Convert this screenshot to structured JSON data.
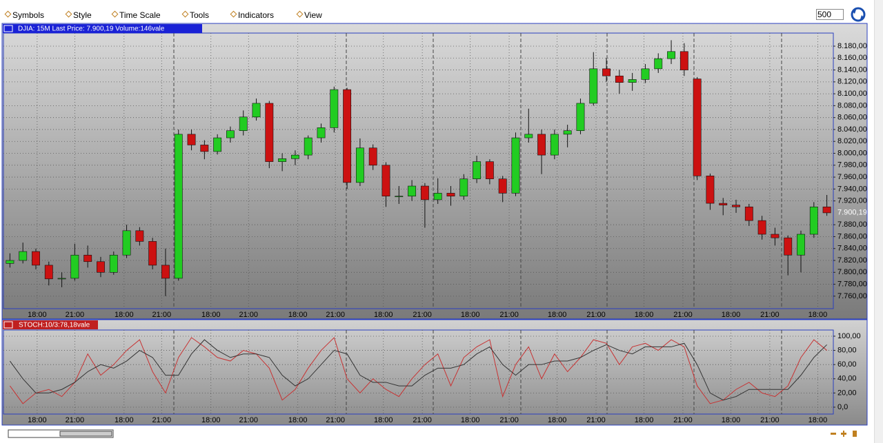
{
  "toolbar": {
    "menu": [
      "Symbols",
      "Style",
      "Time Scale",
      "Tools",
      "Indicators",
      "View"
    ],
    "bars": "500"
  },
  "chart_data": [
    {
      "type": "candlestick",
      "title": "DJIA: 15M Last Price: 7.900,19 Volume:146vale",
      "up_color": "#22cc22",
      "down_color": "#cc1111",
      "ohlc": [
        [
          7815,
          7832,
          7808,
          7820
        ],
        [
          7820,
          7850,
          7815,
          7835
        ],
        [
          7835,
          7840,
          7805,
          7812
        ],
        [
          7812,
          7818,
          7778,
          7789
        ],
        [
          7789,
          7800,
          7775,
          7790
        ],
        [
          7790,
          7848,
          7786,
          7829
        ],
        [
          7829,
          7845,
          7808,
          7818
        ],
        [
          7818,
          7826,
          7792,
          7800
        ],
        [
          7800,
          7835,
          7796,
          7829
        ],
        [
          7829,
          7880,
          7824,
          7870
        ],
        [
          7870,
          7876,
          7845,
          7852
        ],
        [
          7852,
          7858,
          7805,
          7812
        ],
        [
          7812,
          7840,
          7760,
          7790
        ],
        [
          7790,
          8040,
          7786,
          8032
        ],
        [
          8032,
          8040,
          8005,
          8014
        ],
        [
          8014,
          8022,
          7990,
          8003
        ],
        [
          8003,
          8032,
          7998,
          8026
        ],
        [
          8026,
          8045,
          8018,
          8038
        ],
        [
          8038,
          8072,
          8030,
          8061
        ],
        [
          8061,
          8092,
          8055,
          8084
        ],
        [
          8084,
          8088,
          7975,
          7986
        ],
        [
          7986,
          8000,
          7970,
          7991
        ],
        [
          7991,
          8005,
          7980,
          7997
        ],
        [
          7997,
          8030,
          7990,
          8026
        ],
        [
          8026,
          8050,
          8018,
          8043
        ],
        [
          8043,
          8112,
          8035,
          8107
        ],
        [
          8107,
          8110,
          7940,
          7951
        ],
        [
          7951,
          8025,
          7945,
          8009
        ],
        [
          8009,
          8015,
          7972,
          7980
        ],
        [
          7980,
          7985,
          7910,
          7928
        ],
        [
          7928,
          7945,
          7915,
          7928
        ],
        [
          7928,
          7955,
          7920,
          7945
        ],
        [
          7945,
          7950,
          7875,
          7922
        ],
        [
          7922,
          7958,
          7915,
          7933
        ],
        [
          7933,
          7945,
          7912,
          7928
        ],
        [
          7928,
          7965,
          7922,
          7957
        ],
        [
          7957,
          7996,
          7950,
          7986
        ],
        [
          7986,
          7990,
          7948,
          7957
        ],
        [
          7957,
          7962,
          7918,
          7933
        ],
        [
          7933,
          8035,
          7928,
          8026
        ],
        [
          8026,
          8075,
          8018,
          8032
        ],
        [
          8032,
          8040,
          7965,
          7997
        ],
        [
          7997,
          8040,
          7990,
          8032
        ],
        [
          8032,
          8048,
          8010,
          8038
        ],
        [
          8038,
          8092,
          8032,
          8084
        ],
        [
          8084,
          8170,
          8080,
          8142
        ],
        [
          8142,
          8160,
          8120,
          8130
        ],
        [
          8130,
          8140,
          8100,
          8119
        ],
        [
          8119,
          8135,
          8105,
          8124
        ],
        [
          8124,
          8150,
          8118,
          8142
        ],
        [
          8142,
          8168,
          8135,
          8159
        ],
        [
          8159,
          8190,
          8150,
          8171
        ],
        [
          8171,
          8185,
          8130,
          8140
        ],
        [
          8125,
          8128,
          7955,
          7962
        ],
        [
          7962,
          7966,
          7905,
          7916
        ],
        [
          7916,
          7925,
          7896,
          7913
        ],
        [
          7913,
          7922,
          7900,
          7910
        ],
        [
          7910,
          7915,
          7878,
          7887
        ],
        [
          7887,
          7895,
          7855,
          7864
        ],
        [
          7864,
          7875,
          7845,
          7858
        ],
        [
          7858,
          7862,
          7795,
          7829
        ],
        [
          7829,
          7870,
          7800,
          7864
        ],
        [
          7864,
          7918,
          7858,
          7910
        ],
        [
          7910,
          7930,
          7895,
          7900
        ]
      ],
      "ylim": [
        7739,
        8202
      ],
      "yticks": [
        {
          "value": 7760,
          "label": "7.760,00"
        },
        {
          "value": 7780,
          "label": "7.780,00"
        },
        {
          "value": 7800,
          "label": "7.800,00"
        },
        {
          "value": 7820,
          "label": "7.820,00"
        },
        {
          "value": 7840,
          "label": "7.840,00"
        },
        {
          "value": 7860,
          "label": "7.860,00"
        },
        {
          "value": 7880,
          "label": "7.880,00"
        },
        {
          "value": 7920,
          "label": "7.920,00"
        },
        {
          "value": 7940,
          "label": "7.940,00"
        },
        {
          "value": 7960,
          "label": "7.960,00"
        },
        {
          "value": 7980,
          "label": "7.980,00"
        },
        {
          "value": 8000,
          "label": "8.000,00"
        },
        {
          "value": 8020,
          "label": "8.020,00"
        },
        {
          "value": 8040,
          "label": "8.040,00"
        },
        {
          "value": 8060,
          "label": "8.060,00"
        },
        {
          "value": 8080,
          "label": "8.080,00"
        },
        {
          "value": 8100,
          "label": "8.100,00"
        },
        {
          "value": 8120,
          "label": "8.120,00"
        },
        {
          "value": 8140,
          "label": "8.140,00"
        },
        {
          "value": 8160,
          "label": "8.160,00"
        },
        {
          "value": 8180,
          "label": "8.180,00"
        }
      ],
      "last_price": {
        "value": 7900.19,
        "label": "7.900,19"
      },
      "xticks": [
        {
          "value": 2.1,
          "label": "18:00"
        },
        {
          "value": 5.0,
          "label": "21:00"
        },
        {
          "value": 8.8,
          "label": "18:00"
        },
        {
          "value": 11.7,
          "label": "21:00"
        },
        {
          "value": 15.5,
          "label": "18:00"
        },
        {
          "value": 18.4,
          "label": "21:00"
        },
        {
          "value": 22.2,
          "label": "18:00"
        },
        {
          "value": 25.1,
          "label": "21:00"
        },
        {
          "value": 28.8,
          "label": "18:00"
        },
        {
          "value": 31.8,
          "label": "21:00"
        },
        {
          "value": 35.5,
          "label": "18:00"
        },
        {
          "value": 38.5,
          "label": "21:00"
        },
        {
          "value": 42.2,
          "label": "18:00"
        },
        {
          "value": 45.2,
          "label": "21:00"
        },
        {
          "value": 48.9,
          "label": "18:00"
        },
        {
          "value": 51.9,
          "label": "21:00"
        },
        {
          "value": 55.6,
          "label": "18:00"
        },
        {
          "value": 58.6,
          "label": "21:00"
        },
        {
          "value": 62.3,
          "label": "18:00"
        }
      ],
      "grid": true
    },
    {
      "type": "line",
      "title": "STOCH:10/3:78,18vale",
      "series": [
        {
          "color": "#c83232",
          "values": [
            30,
            5,
            20,
            25,
            15,
            35,
            75,
            45,
            60,
            80,
            95,
            50,
            20,
            70,
            98,
            85,
            70,
            65,
            80,
            75,
            55,
            10,
            25,
            55,
            80,
            98,
            40,
            20,
            40,
            25,
            15,
            40,
            60,
            75,
            30,
            70,
            85,
            95,
            15,
            60,
            85,
            40,
            75,
            50,
            70,
            95,
            90,
            60,
            85,
            90,
            80,
            95,
            85,
            30,
            5,
            10,
            25,
            35,
            20,
            15,
            30,
            70,
            95,
            80
          ]
        },
        {
          "color": "#333333",
          "values": [
            65,
            40,
            20,
            20,
            25,
            35,
            50,
            60,
            55,
            65,
            80,
            70,
            45,
            45,
            75,
            95,
            80,
            70,
            75,
            75,
            70,
            45,
            30,
            40,
            60,
            80,
            75,
            45,
            35,
            35,
            30,
            30,
            45,
            55,
            55,
            60,
            75,
            85,
            60,
            45,
            60,
            60,
            65,
            65,
            70,
            80,
            88,
            80,
            75,
            85,
            85,
            85,
            90,
            60,
            20,
            10,
            15,
            25,
            25,
            25,
            25,
            45,
            70,
            88
          ]
        }
      ],
      "ylim": [
        -9.7,
        108.7
      ],
      "yticks": [
        {
          "value": 0,
          "label": "0,0"
        },
        {
          "value": 20,
          "label": "20,00"
        },
        {
          "value": 40,
          "label": "40,00"
        },
        {
          "value": 60,
          "label": "60,00"
        },
        {
          "value": 80,
          "label": "80,00"
        },
        {
          "value": 100,
          "label": "100,00"
        }
      ],
      "xticks": [
        {
          "value": 2.1,
          "label": "18:00"
        },
        {
          "value": 5.0,
          "label": "21:00"
        },
        {
          "value": 8.8,
          "label": "18:00"
        },
        {
          "value": 11.7,
          "label": "21:00"
        },
        {
          "value": 15.5,
          "label": "18:00"
        },
        {
          "value": 18.4,
          "label": "21:00"
        },
        {
          "value": 22.2,
          "label": "18:00"
        },
        {
          "value": 25.1,
          "label": "21:00"
        },
        {
          "value": 28.8,
          "label": "18:00"
        },
        {
          "value": 31.8,
          "label": "21:00"
        },
        {
          "value": 35.5,
          "label": "18:00"
        },
        {
          "value": 38.5,
          "label": "21:00"
        },
        {
          "value": 42.2,
          "label": "18:00"
        },
        {
          "value": 45.2,
          "label": "21:00"
        },
        {
          "value": 48.9,
          "label": "18:00"
        },
        {
          "value": 51.9,
          "label": "21:00"
        },
        {
          "value": 55.6,
          "label": "18:00"
        },
        {
          "value": 58.6,
          "label": "21:00"
        },
        {
          "value": 62.3,
          "label": "18:00"
        }
      ],
      "grid": true
    }
  ]
}
